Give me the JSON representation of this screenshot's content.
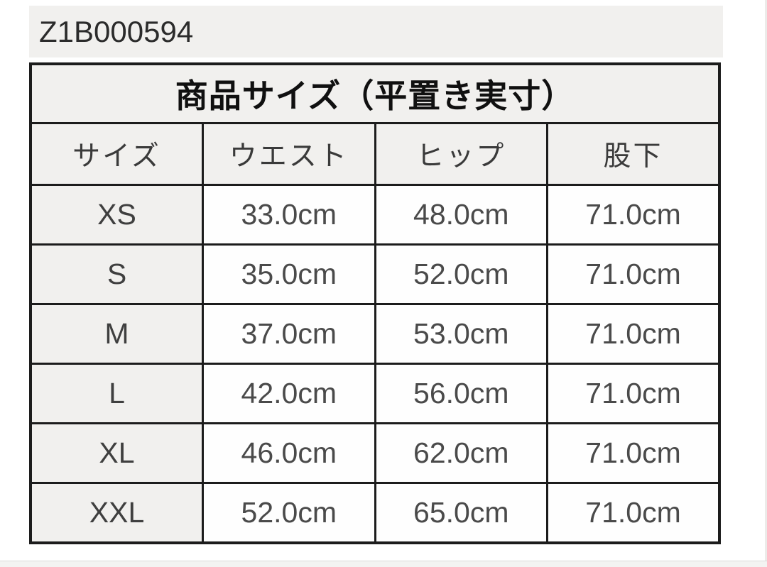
{
  "page": {
    "product_code": "Z1B000594"
  },
  "chart_data": {
    "type": "table",
    "title": "商品サイズ（平置き実寸）",
    "columns": [
      "サイズ",
      "ウエスト",
      "ヒップ",
      "股下"
    ],
    "rows": [
      [
        "XS",
        "33.0cm",
        "48.0cm",
        "71.0cm"
      ],
      [
        "S",
        "35.0cm",
        "52.0cm",
        "71.0cm"
      ],
      [
        "M",
        "37.0cm",
        "53.0cm",
        "71.0cm"
      ],
      [
        "L",
        "42.0cm",
        "56.0cm",
        "71.0cm"
      ],
      [
        "XL",
        "46.0cm",
        "62.0cm",
        "71.0cm"
      ],
      [
        "XXL",
        "52.0cm",
        "65.0cm",
        "71.0cm"
      ]
    ],
    "layout": {
      "grid": "on",
      "header_background": "#f1f0ee",
      "data_background": "#ffffff",
      "border_color": "#1c1c1c"
    }
  },
  "colors": {
    "cell_gray": "#f1f0ee",
    "border": "#1c1c1c",
    "title_text": "#101010",
    "data_text": "#4a4a4a"
  }
}
